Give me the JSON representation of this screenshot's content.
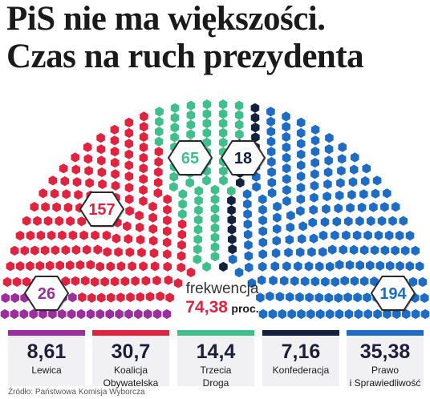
{
  "headline": {
    "line1": "PiS nie ma większości.",
    "line2": "Czas na ruch prezydenta"
  },
  "turnout": {
    "label": "frekwencja",
    "value": "74,38",
    "unit": "proc."
  },
  "source": "Źródło: Państwowa Komisja Wyborcza",
  "colors": {
    "lewica": "#9b2f9d",
    "ko": "#e0243f",
    "trzecia_droga": "#3fbf8c",
    "konfederacja": "#13213f",
    "pis": "#1f6cc4"
  },
  "chart_data": {
    "type": "parliament",
    "total_seats": 460,
    "parties": [
      {
        "name": "Lewica",
        "seats": 26,
        "seat_label": "26",
        "vote_percent": "8,61",
        "color": "#9b2f9d"
      },
      {
        "name": "Koalicja Obywatelska",
        "seats": 157,
        "seat_label": "157",
        "vote_percent": "30,7",
        "color": "#e0243f"
      },
      {
        "name": "Trzecia Droga",
        "seats": 65,
        "seat_label": "65",
        "vote_percent": "14,4",
        "color": "#3fbf8c"
      },
      {
        "name": "Konfederacja",
        "seats": 18,
        "seat_label": "18",
        "vote_percent": "7,16",
        "color": "#13213f"
      },
      {
        "name": "Prawo i Sprawiedliwość",
        "seats": 194,
        "seat_label": "194",
        "vote_percent": "35,38",
        "color": "#1f6cc4"
      }
    ],
    "cards": [
      {
        "value": "8,61",
        "label_line1": "Lewica",
        "label_line2": "",
        "color": "#9b2f9d"
      },
      {
        "value": "30,7",
        "label_line1": "Koalicja",
        "label_line2": "Obywatelska",
        "color": "#e0243f"
      },
      {
        "value": "14,4",
        "label_line1": "Trzecia",
        "label_line2": "Droga",
        "color": "#3fbf8c"
      },
      {
        "value": "7,16",
        "label_line1": "Konfederacja",
        "label_line2": "",
        "color": "#13213f"
      },
      {
        "value": "35,38",
        "label_line1": "Prawo",
        "label_line2": "i Sprawiedliwość",
        "color": "#1f6cc4"
      }
    ]
  }
}
